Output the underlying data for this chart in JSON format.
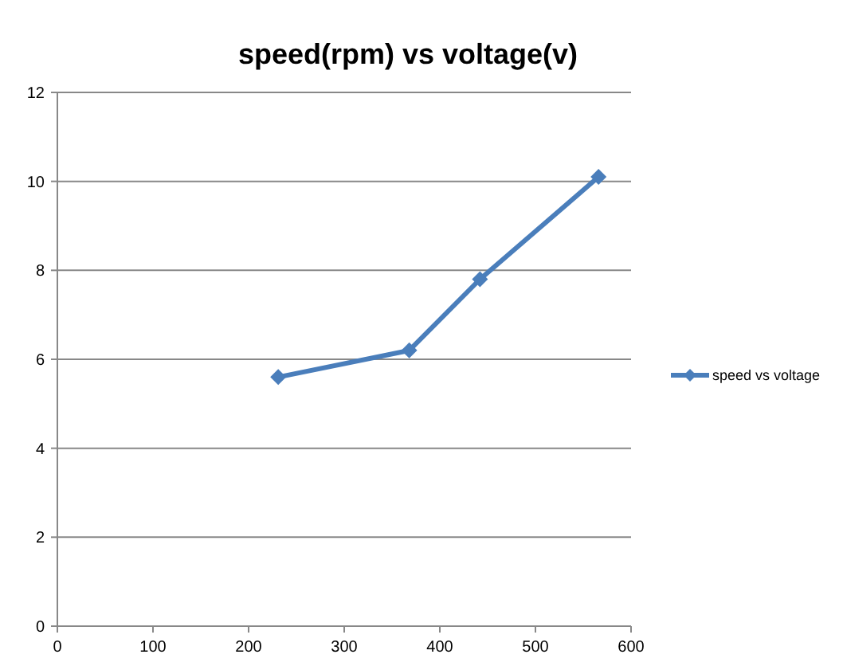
{
  "chart_data": {
    "type": "line",
    "title": "speed(rpm)  vs  voltage(v)",
    "x": [
      231,
      368,
      442,
      566
    ],
    "series": [
      {
        "name": "speed vs voltage",
        "color": "#4a7ebb",
        "values": [
          5.6,
          6.2,
          7.8,
          10.1
        ]
      }
    ],
    "xlim": [
      0,
      600
    ],
    "xticks": [
      0,
      100,
      200,
      300,
      400,
      500,
      600
    ],
    "ylim": [
      0,
      12
    ],
    "yticks": [
      0,
      2,
      4,
      6,
      8,
      10,
      12
    ],
    "grid": "y",
    "legend": "right",
    "marker": "diamond",
    "line_style": "solid"
  }
}
